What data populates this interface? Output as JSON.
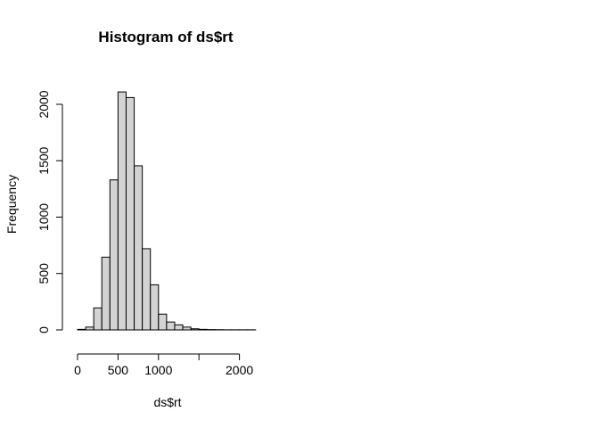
{
  "chart_data": {
    "type": "bar",
    "title": "Histogram of ds$rt",
    "xlabel": "ds$rt",
    "ylabel": "Frequency",
    "bin_width": 100,
    "bins": [
      {
        "start": 0,
        "end": 100,
        "count": 5
      },
      {
        "start": 100,
        "end": 200,
        "count": 25
      },
      {
        "start": 200,
        "end": 300,
        "count": 195
      },
      {
        "start": 300,
        "end": 400,
        "count": 645
      },
      {
        "start": 400,
        "end": 500,
        "count": 1330
      },
      {
        "start": 500,
        "end": 600,
        "count": 2110
      },
      {
        "start": 600,
        "end": 700,
        "count": 2060
      },
      {
        "start": 700,
        "end": 800,
        "count": 1455
      },
      {
        "start": 800,
        "end": 900,
        "count": 720
      },
      {
        "start": 900,
        "end": 1000,
        "count": 400
      },
      {
        "start": 1000,
        "end": 1100,
        "count": 140
      },
      {
        "start": 1100,
        "end": 1200,
        "count": 70
      },
      {
        "start": 1200,
        "end": 1300,
        "count": 45
      },
      {
        "start": 1300,
        "end": 1400,
        "count": 25
      },
      {
        "start": 1400,
        "end": 1500,
        "count": 10
      },
      {
        "start": 1500,
        "end": 1600,
        "count": 5
      },
      {
        "start": 1600,
        "end": 1700,
        "count": 3
      },
      {
        "start": 1700,
        "end": 1800,
        "count": 2
      },
      {
        "start": 1800,
        "end": 1900,
        "count": 1
      },
      {
        "start": 1900,
        "end": 2000,
        "count": 1
      },
      {
        "start": 2000,
        "end": 2100,
        "count": 1
      },
      {
        "start": 2100,
        "end": 2200,
        "count": 1
      }
    ],
    "x_ticks": [
      0,
      500,
      1000,
      1500,
      2000
    ],
    "x_tick_labels": [
      "0",
      "500",
      "1000",
      "",
      "2000"
    ],
    "y_ticks": [
      0,
      500,
      1000,
      1500,
      2000
    ],
    "y_tick_labels": [
      "0",
      "500",
      "1000",
      "1500",
      "2000"
    ],
    "xlim": [
      0,
      2200
    ],
    "ylim": [
      0,
      2150
    ],
    "colors": {
      "bar_fill": "#d3d3d3",
      "bar_stroke": "#000000"
    },
    "grid": false
  }
}
